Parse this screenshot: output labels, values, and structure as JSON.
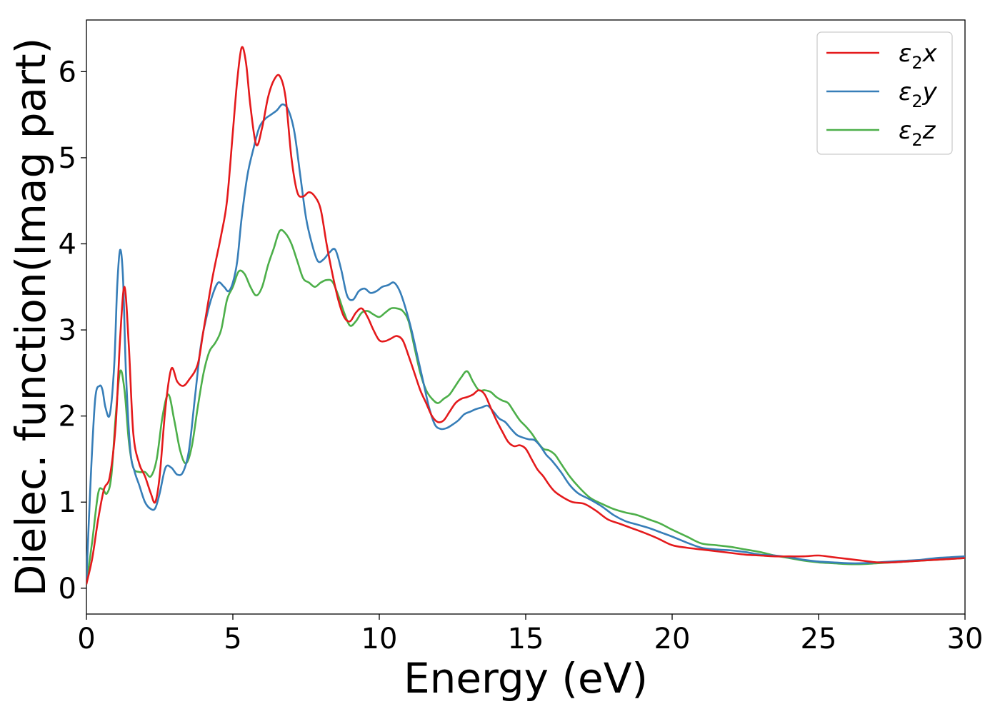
{
  "chart_data": {
    "type": "line",
    "title": "",
    "xlabel": "Energy (eV)",
    "ylabel": "Dielec. function(Imag part)",
    "xlim": [
      0,
      30
    ],
    "ylim": [
      -0.3,
      6.6
    ],
    "xticks": [
      0,
      5,
      10,
      15,
      20,
      25,
      30
    ],
    "yticks": [
      0,
      1,
      2,
      3,
      4,
      5,
      6
    ],
    "grid": false,
    "legend_position": "top-right",
    "series": [
      {
        "name": "ε2x",
        "legend_base": "ε",
        "legend_sub": "2",
        "legend_suffix": "x",
        "color": "#e41a1c",
        "x": [
          0,
          0.2,
          0.4,
          0.6,
          0.8,
          1.0,
          1.15,
          1.3,
          1.45,
          1.6,
          1.8,
          2.0,
          2.2,
          2.35,
          2.5,
          2.7,
          2.9,
          3.1,
          3.3,
          3.5,
          3.8,
          4.0,
          4.3,
          4.6,
          4.8,
          5.0,
          5.15,
          5.3,
          5.45,
          5.6,
          5.8,
          6.0,
          6.2,
          6.4,
          6.6,
          6.8,
          7.0,
          7.2,
          7.4,
          7.6,
          7.8,
          8.0,
          8.2,
          8.4,
          8.6,
          8.8,
          9.0,
          9.2,
          9.4,
          9.6,
          9.8,
          10.0,
          10.2,
          10.4,
          10.6,
          10.8,
          11.0,
          11.2,
          11.4,
          11.6,
          11.8,
          12.0,
          12.2,
          12.4,
          12.6,
          12.8,
          13.0,
          13.2,
          13.4,
          13.6,
          13.8,
          14.0,
          14.2,
          14.4,
          14.6,
          14.8,
          15.0,
          15.2,
          15.4,
          15.6,
          15.8,
          16.0,
          16.3,
          16.6,
          17.0,
          17.4,
          17.8,
          18.2,
          18.6,
          19.0,
          19.5,
          20.0,
          20.5,
          21.0,
          21.5,
          22.0,
          22.5,
          23.0,
          23.5,
          24.0,
          24.5,
          25.0,
          25.5,
          26.0,
          26.5,
          27.0,
          27.5,
          28.0,
          28.5,
          29.0,
          29.5,
          30.0
        ],
        "y": [
          0.05,
          0.35,
          0.8,
          1.15,
          1.3,
          1.9,
          2.9,
          3.5,
          2.8,
          1.8,
          1.45,
          1.3,
          1.1,
          1.0,
          1.3,
          2.1,
          2.55,
          2.4,
          2.35,
          2.42,
          2.6,
          3.0,
          3.6,
          4.1,
          4.5,
          5.3,
          5.9,
          6.28,
          6.1,
          5.6,
          5.15,
          5.35,
          5.7,
          5.9,
          5.95,
          5.7,
          5.0,
          4.6,
          4.55,
          4.6,
          4.55,
          4.4,
          4.0,
          3.65,
          3.35,
          3.15,
          3.1,
          3.2,
          3.25,
          3.15,
          3.0,
          2.88,
          2.87,
          2.9,
          2.93,
          2.88,
          2.7,
          2.5,
          2.3,
          2.15,
          2.0,
          1.93,
          1.95,
          2.05,
          2.15,
          2.2,
          2.22,
          2.25,
          2.3,
          2.25,
          2.1,
          1.95,
          1.82,
          1.7,
          1.65,
          1.66,
          1.62,
          1.5,
          1.38,
          1.3,
          1.2,
          1.12,
          1.05,
          1.0,
          0.98,
          0.9,
          0.8,
          0.75,
          0.7,
          0.65,
          0.58,
          0.5,
          0.47,
          0.45,
          0.43,
          0.41,
          0.39,
          0.38,
          0.37,
          0.37,
          0.37,
          0.38,
          0.36,
          0.34,
          0.32,
          0.3,
          0.3,
          0.31,
          0.32,
          0.33,
          0.34,
          0.35
        ]
      },
      {
        "name": "ε2y",
        "legend_base": "ε",
        "legend_sub": "2",
        "legend_suffix": "y",
        "color": "#377eb8",
        "x": [
          0,
          0.15,
          0.3,
          0.45,
          0.55,
          0.65,
          0.8,
          0.95,
          1.05,
          1.15,
          1.25,
          1.35,
          1.5,
          1.65,
          1.8,
          2.0,
          2.2,
          2.35,
          2.5,
          2.7,
          2.9,
          3.1,
          3.3,
          3.5,
          3.7,
          3.9,
          4.1,
          4.3,
          4.5,
          4.7,
          4.85,
          5.0,
          5.15,
          5.3,
          5.5,
          5.7,
          5.9,
          6.1,
          6.3,
          6.5,
          6.7,
          6.9,
          7.1,
          7.3,
          7.5,
          7.7,
          7.9,
          8.1,
          8.3,
          8.5,
          8.7,
          8.9,
          9.1,
          9.3,
          9.5,
          9.7,
          9.9,
          10.1,
          10.3,
          10.5,
          10.7,
          10.9,
          11.1,
          11.3,
          11.5,
          11.7,
          11.9,
          12.1,
          12.3,
          12.5,
          12.7,
          12.9,
          13.1,
          13.3,
          13.5,
          13.7,
          13.9,
          14.1,
          14.3,
          14.5,
          14.7,
          14.9,
          15.1,
          15.3,
          15.5,
          15.7,
          15.9,
          16.2,
          16.5,
          16.8,
          17.2,
          17.6,
          18.0,
          18.4,
          18.8,
          19.2,
          19.6,
          20.0,
          20.5,
          21.0,
          21.5,
          22.0,
          22.5,
          23.0,
          23.5,
          24.0,
          24.5,
          25.0,
          25.5,
          26.0,
          26.5,
          27.0,
          27.5,
          28.0,
          28.5,
          29.0,
          29.5,
          30.0
        ],
        "y": [
          0.1,
          1.3,
          2.2,
          2.35,
          2.3,
          2.1,
          2.02,
          2.6,
          3.5,
          3.93,
          3.6,
          2.5,
          1.6,
          1.35,
          1.2,
          1.0,
          0.92,
          0.93,
          1.1,
          1.4,
          1.4,
          1.32,
          1.35,
          1.6,
          2.2,
          2.8,
          3.15,
          3.4,
          3.55,
          3.5,
          3.45,
          3.55,
          3.8,
          4.3,
          4.8,
          5.1,
          5.35,
          5.45,
          5.5,
          5.55,
          5.62,
          5.55,
          5.3,
          4.8,
          4.3,
          4.0,
          3.8,
          3.82,
          3.9,
          3.93,
          3.7,
          3.4,
          3.35,
          3.45,
          3.48,
          3.43,
          3.45,
          3.5,
          3.52,
          3.55,
          3.45,
          3.25,
          3.0,
          2.7,
          2.4,
          2.1,
          1.9,
          1.85,
          1.86,
          1.9,
          1.95,
          2.02,
          2.05,
          2.08,
          2.1,
          2.12,
          2.05,
          1.97,
          1.93,
          1.85,
          1.78,
          1.75,
          1.73,
          1.72,
          1.65,
          1.55,
          1.48,
          1.35,
          1.2,
          1.1,
          1.03,
          0.95,
          0.85,
          0.78,
          0.74,
          0.7,
          0.65,
          0.6,
          0.53,
          0.47,
          0.45,
          0.44,
          0.42,
          0.39,
          0.38,
          0.36,
          0.33,
          0.31,
          0.3,
          0.29,
          0.29,
          0.3,
          0.31,
          0.32,
          0.33,
          0.35,
          0.36,
          0.37
        ]
      },
      {
        "name": "ε2z",
        "legend_base": "ε",
        "legend_sub": "2",
        "legend_suffix": "z",
        "color": "#4daf4a",
        "x": [
          0,
          0.2,
          0.4,
          0.55,
          0.7,
          0.85,
          1.0,
          1.15,
          1.3,
          1.45,
          1.6,
          1.8,
          2.0,
          2.2,
          2.4,
          2.6,
          2.8,
          3.0,
          3.2,
          3.4,
          3.6,
          3.8,
          4.0,
          4.2,
          4.4,
          4.6,
          4.8,
          5.0,
          5.2,
          5.4,
          5.6,
          5.8,
          6.0,
          6.2,
          6.4,
          6.6,
          6.8,
          7.0,
          7.2,
          7.4,
          7.6,
          7.8,
          8.0,
          8.2,
          8.4,
          8.6,
          8.8,
          9.0,
          9.2,
          9.4,
          9.6,
          9.8,
          10.0,
          10.2,
          10.4,
          10.6,
          10.8,
          11.0,
          11.2,
          11.4,
          11.6,
          11.8,
          12.0,
          12.2,
          12.4,
          12.6,
          12.8,
          13.0,
          13.2,
          13.4,
          13.6,
          13.8,
          14.0,
          14.2,
          14.4,
          14.6,
          14.8,
          15.0,
          15.2,
          15.4,
          15.6,
          15.8,
          16.0,
          16.2,
          16.5,
          16.8,
          17.2,
          17.6,
          18.0,
          18.4,
          18.8,
          19.2,
          19.6,
          20.0,
          20.5,
          21.0,
          21.5,
          22.0,
          22.5,
          23.0,
          23.5,
          24.0,
          24.5,
          25.0,
          25.5,
          26.0,
          26.5,
          27.0,
          27.5,
          28.0,
          28.5,
          29.0,
          29.5,
          30.0
        ],
        "y": [
          0.05,
          0.55,
          1.1,
          1.15,
          1.1,
          1.3,
          2.0,
          2.52,
          2.3,
          1.7,
          1.4,
          1.35,
          1.35,
          1.3,
          1.5,
          2.0,
          2.25,
          1.95,
          1.6,
          1.45,
          1.65,
          2.1,
          2.5,
          2.75,
          2.85,
          3.0,
          3.35,
          3.5,
          3.68,
          3.65,
          3.5,
          3.4,
          3.5,
          3.75,
          3.95,
          4.15,
          4.12,
          4.0,
          3.8,
          3.6,
          3.55,
          3.5,
          3.55,
          3.58,
          3.56,
          3.4,
          3.2,
          3.05,
          3.1,
          3.2,
          3.22,
          3.18,
          3.15,
          3.2,
          3.25,
          3.25,
          3.22,
          3.1,
          2.8,
          2.5,
          2.3,
          2.2,
          2.15,
          2.2,
          2.25,
          2.35,
          2.45,
          2.52,
          2.4,
          2.3,
          2.3,
          2.28,
          2.22,
          2.18,
          2.15,
          2.05,
          1.95,
          1.88,
          1.8,
          1.7,
          1.62,
          1.6,
          1.55,
          1.45,
          1.3,
          1.18,
          1.05,
          0.98,
          0.92,
          0.88,
          0.85,
          0.8,
          0.75,
          0.68,
          0.6,
          0.52,
          0.5,
          0.48,
          0.45,
          0.42,
          0.38,
          0.35,
          0.32,
          0.3,
          0.29,
          0.28,
          0.28,
          0.29,
          0.3,
          0.31,
          0.32,
          0.33,
          0.34,
          0.35
        ]
      }
    ]
  }
}
